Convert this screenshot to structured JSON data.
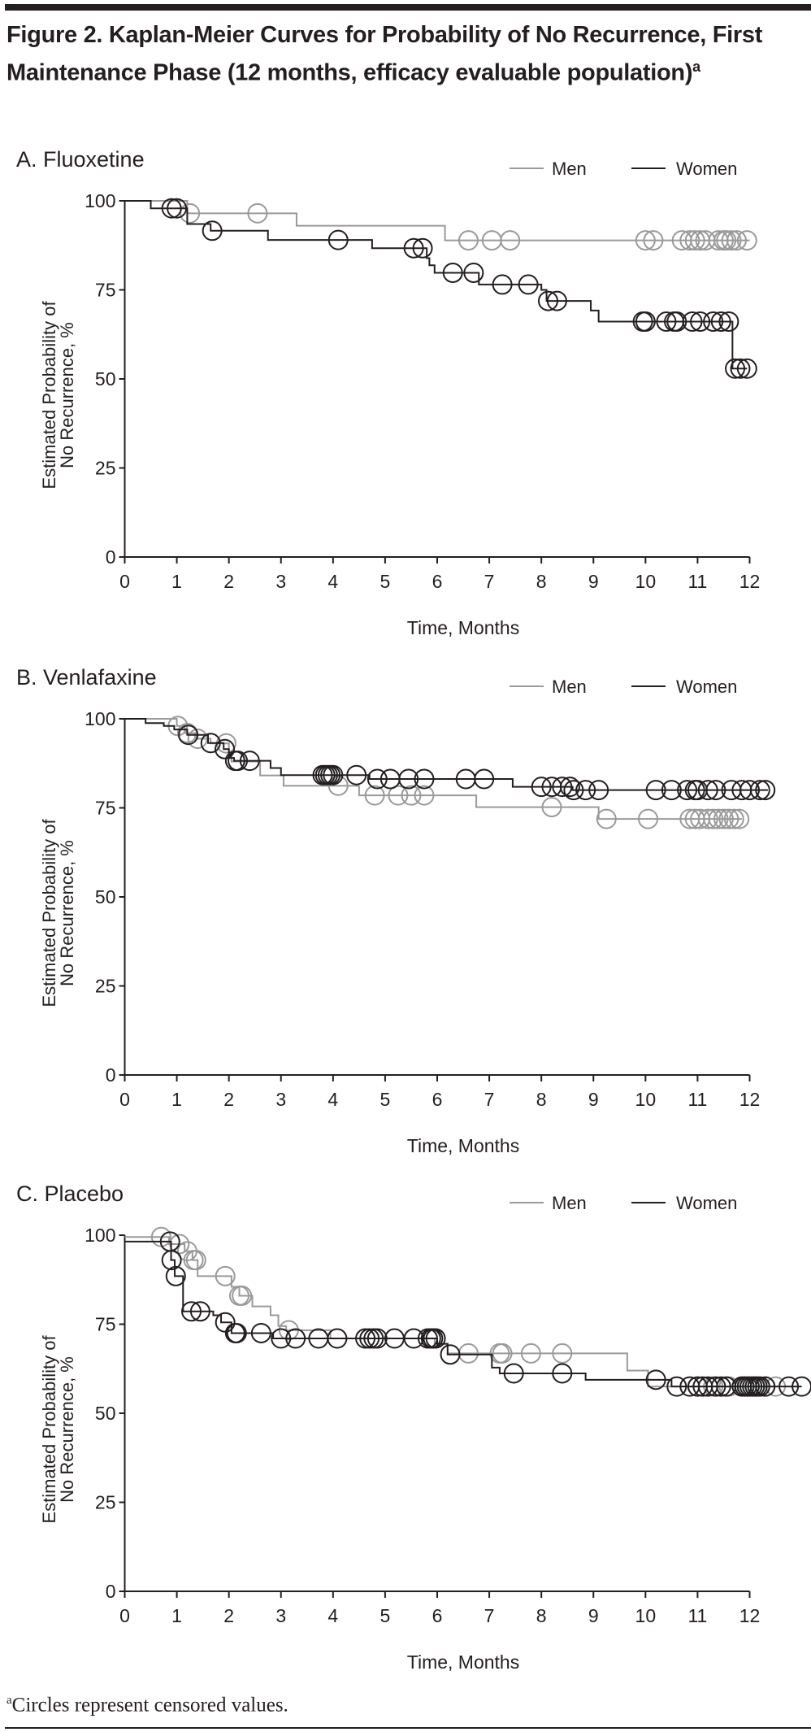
{
  "figure": {
    "title": "Figure 2. Kaplan-Meier Curves for Probability of No Recurrence, First Maintenance Phase (12 months, efficacy evaluable population)",
    "title_superscript": "a",
    "footnote_marker": "a",
    "footnote": "Circles represent censored values."
  },
  "chart_data": [
    {
      "type": "line",
      "title": "A. Fluoxetine",
      "xlabel": "Time, Months",
      "ylabel": [
        "Estimated Probability of",
        "No Recurrence, %"
      ],
      "xlim": [
        0,
        12
      ],
      "ylim": [
        0,
        100
      ],
      "xticks": [
        "0",
        "1",
        "2",
        "3",
        "4",
        "5",
        "6",
        "7",
        "8",
        "9",
        "10",
        "11",
        "12"
      ],
      "yticks": [
        "0",
        "25",
        "50",
        "75",
        "100"
      ],
      "legend": "top-right",
      "series": [
        {
          "name": "Men",
          "color": "#9a9a9a",
          "steps": [
            [
              0,
              100
            ],
            [
              1.2,
              96.5
            ],
            [
              3.3,
              93
            ],
            [
              6.15,
              88.9
            ]
          ],
          "end": 12,
          "censored": [
            1.25,
            2.55,
            6.6,
            7.05,
            7.4,
            10.0,
            10.15,
            10.7,
            10.85,
            10.95,
            11.05,
            11.15,
            11.4,
            11.5,
            11.55,
            11.65,
            11.75,
            11.95
          ]
        },
        {
          "name": "Women",
          "color": "#231f20",
          "steps": [
            [
              0,
              100
            ],
            [
              0.5,
              97.9
            ],
            [
              1.2,
              93.5
            ],
            [
              1.65,
              91.6
            ],
            [
              2.75,
              89
            ],
            [
              4.75,
              86.7
            ],
            [
              5.8,
              83.9
            ],
            [
              5.85,
              81.9
            ],
            [
              5.95,
              79.8
            ],
            [
              6.8,
              76.5
            ],
            [
              8.0,
              75
            ],
            [
              8.1,
              71.9
            ],
            [
              8.95,
              69.2
            ],
            [
              9.1,
              66.1
            ],
            [
              11.67,
              52.9
            ]
          ],
          "end": 11.95,
          "censored": [
            0.9,
            1.0,
            1.68,
            4.1,
            5.55,
            5.72,
            6.3,
            6.7,
            7.25,
            7.75,
            8.13,
            8.3,
            9.95,
            10.0,
            10.4,
            10.55,
            10.6,
            10.9,
            11.05,
            11.3,
            11.45,
            11.6,
            11.72,
            11.82,
            11.95
          ]
        }
      ]
    },
    {
      "type": "line",
      "title": "B. Venlafaxine",
      "xlabel": "Time, Months",
      "ylabel": [
        "Estimated Probability of",
        "No Recurrence, %"
      ],
      "xlim": [
        0,
        12
      ],
      "ylim": [
        0,
        100
      ],
      "xticks": [
        "0",
        "1",
        "2",
        "3",
        "4",
        "5",
        "6",
        "7",
        "8",
        "9",
        "10",
        "11",
        "12"
      ],
      "yticks": [
        "0",
        "25",
        "50",
        "75",
        "100"
      ],
      "legend": "top-right",
      "series": [
        {
          "name": "Men",
          "color": "#9a9a9a",
          "steps": [
            [
              0,
              100
            ],
            [
              1.0,
              98
            ],
            [
              1.15,
              96
            ],
            [
              1.35,
              94.4
            ],
            [
              1.65,
              93.1
            ],
            [
              2.0,
              90
            ],
            [
              2.05,
              88
            ],
            [
              2.6,
              84.1
            ],
            [
              3.05,
              81.2
            ],
            [
              4.5,
              78.5
            ],
            [
              6.75,
              75.2
            ],
            [
              9.1,
              71.9
            ]
          ],
          "end": 11.85,
          "censored": [
            1.02,
            1.2,
            1.4,
            1.95,
            4.1,
            4.8,
            5.25,
            5.5,
            5.75,
            8.2,
            9.25,
            10.05,
            10.85,
            10.95,
            11.05,
            11.2,
            11.3,
            11.4,
            11.5,
            11.6,
            11.7,
            11.8
          ]
        },
        {
          "name": "Women",
          "color": "#231f20",
          "steps": [
            [
              0,
              100
            ],
            [
              0.4,
              98.8
            ],
            [
              0.75,
              98
            ],
            [
              0.95,
              97
            ],
            [
              1.2,
              95.5
            ],
            [
              1.6,
              93.2
            ],
            [
              1.9,
              91.5
            ],
            [
              2.0,
              89
            ],
            [
              2.1,
              88.2
            ],
            [
              2.8,
              86.2
            ],
            [
              3.0,
              84.2
            ],
            [
              4.7,
              83.1
            ],
            [
              7.45,
              80.9
            ],
            [
              8.6,
              80
            ]
          ],
          "end": 12.35,
          "censored": [
            1.22,
            1.65,
            1.92,
            2.12,
            2.17,
            2.4,
            3.8,
            3.85,
            3.9,
            3.95,
            4.0,
            4.45,
            4.85,
            5.1,
            5.45,
            5.75,
            6.55,
            6.9,
            8.0,
            8.2,
            8.4,
            8.55,
            8.62,
            8.85,
            9.1,
            10.2,
            10.5,
            10.8,
            10.95,
            11.0,
            11.2,
            11.35,
            11.65,
            11.85,
            12.0,
            12.2,
            12.3
          ]
        }
      ]
    },
    {
      "type": "line",
      "title": "C. Placebo",
      "xlabel": "Time, Months",
      "ylabel": [
        "Estimated Probability of",
        "No Recurrence, %"
      ],
      "xlim": [
        0,
        12
      ],
      "ylim": [
        0,
        100
      ],
      "xticks": [
        "0",
        "1",
        "2",
        "3",
        "4",
        "5",
        "6",
        "7",
        "8",
        "9",
        "10",
        "11",
        "12"
      ],
      "yticks": [
        "0",
        "25",
        "50",
        "75",
        "100"
      ],
      "legend": "top-right",
      "series": [
        {
          "name": "Men",
          "color": "#9a9a9a",
          "steps": [
            [
              0,
              99.5
            ],
            [
              0.85,
              97.5
            ],
            [
              1.15,
              95.5
            ],
            [
              1.3,
              93
            ],
            [
              1.4,
              88.5
            ],
            [
              2.05,
              85.5
            ],
            [
              2.2,
              83
            ],
            [
              2.45,
              80
            ],
            [
              2.8,
              77.5
            ],
            [
              2.95,
              74.5
            ],
            [
              3.1,
              73.3
            ],
            [
              3.95,
              71
            ],
            [
              5.95,
              69.5
            ],
            [
              6.2,
              66.8
            ],
            [
              9.65,
              62
            ],
            [
              10.05,
              57.5
            ]
          ],
          "end": 12.5,
          "censored": [
            0.7,
            1.05,
            1.2,
            1.32,
            1.37,
            1.93,
            2.2,
            2.25,
            3.15,
            6.6,
            7.2,
            7.25,
            7.8,
            8.4,
            11.0,
            11.3,
            11.6,
            11.9,
            12.1,
            12.3,
            12.5
          ]
        },
        {
          "name": "Women",
          "color": "#231f20",
          "steps": [
            [
              0,
              98.2
            ],
            [
              0.89,
              93
            ],
            [
              0.96,
              88.5
            ],
            [
              1.12,
              78.6
            ],
            [
              1.7,
              77.5
            ],
            [
              1.85,
              75.5
            ],
            [
              2.05,
              72.5
            ],
            [
              2.85,
              71
            ],
            [
              6.0,
              69.5
            ],
            [
              6.2,
              66.5
            ],
            [
              7.05,
              62.8
            ],
            [
              7.2,
              61.2
            ],
            [
              8.85,
              59.4
            ],
            [
              10.5,
              57.5
            ]
          ],
          "end": 13.0,
          "censored": [
            0.87,
            0.9,
            0.98,
            1.28,
            1.45,
            1.93,
            2.12,
            2.15,
            2.62,
            3.0,
            3.28,
            3.72,
            4.08,
            4.62,
            4.7,
            4.78,
            4.85,
            5.18,
            5.55,
            5.82,
            5.88,
            5.92,
            5.97,
            6.25,
            7.47,
            8.4,
            10.2,
            10.6,
            10.85,
            11.0,
            11.1,
            11.2,
            11.35,
            11.45,
            11.55,
            11.85,
            11.9,
            11.95,
            12.0,
            12.05,
            12.1,
            12.15,
            12.2,
            12.3,
            12.75,
            13.0
          ]
        }
      ]
    }
  ]
}
